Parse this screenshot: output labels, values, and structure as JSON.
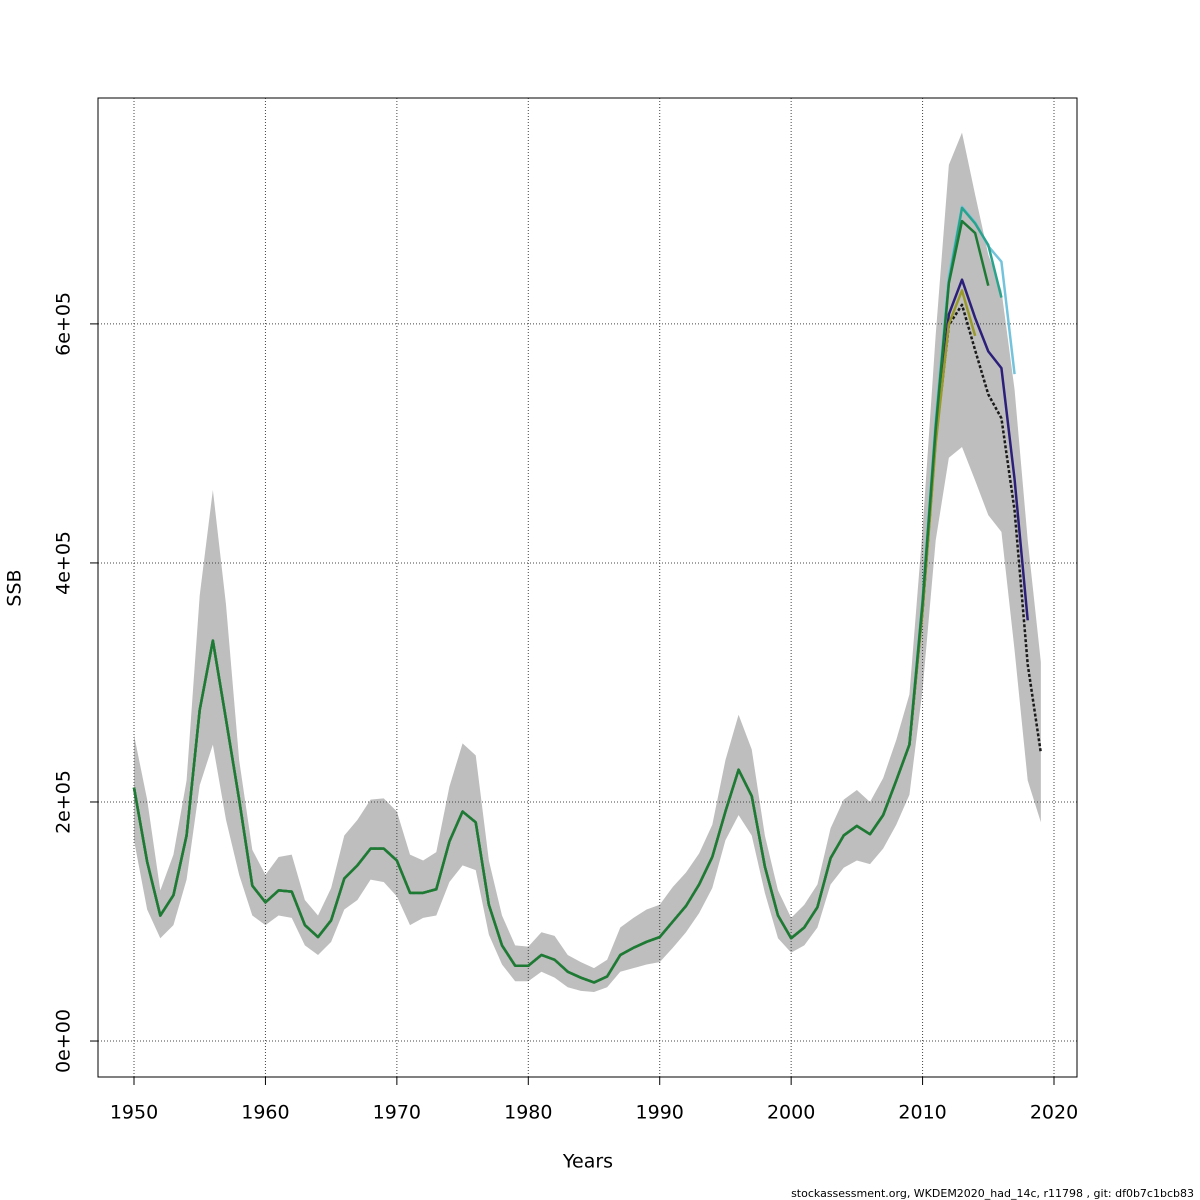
{
  "chart_data": {
    "type": "line",
    "xlabel": "Years",
    "ylabel": "SSB",
    "footer": "stockassessment.org, WKDEM2020_had_14c, r11798 , git: df0b7c1bcb83",
    "xlim": [
      1947.26,
      2021.75
    ],
    "ylim": [
      -30100,
      789000
    ],
    "xticks": [
      1950,
      1960,
      1970,
      1980,
      1990,
      2000,
      2010,
      2020
    ],
    "yticks": [
      {
        "value": 0,
        "label": "0e+00"
      },
      {
        "value": 200000,
        "label": "2e+05"
      },
      {
        "value": 400000,
        "label": "4e+05"
      },
      {
        "value": 600000,
        "label": "6e+05"
      }
    ],
    "grid": true,
    "x": [
      1950,
      1951,
      1952,
      1953,
      1954,
      1955,
      1956,
      1957,
      1958,
      1959,
      1960,
      1961,
      1962,
      1963,
      1964,
      1965,
      1966,
      1967,
      1968,
      1969,
      1970,
      1971,
      1972,
      1973,
      1974,
      1975,
      1976,
      1977,
      1978,
      1979,
      1980,
      1981,
      1982,
      1983,
      1984,
      1985,
      1986,
      1987,
      1988,
      1989,
      1990,
      1991,
      1992,
      1993,
      1994,
      1995,
      1996,
      1997,
      1998,
      1999,
      2000,
      2001,
      2002,
      2003,
      2004,
      2005,
      2006,
      2007,
      2008,
      2009,
      2010,
      2011,
      2012,
      2013,
      2014,
      2015,
      2016,
      2017,
      2018,
      2019
    ],
    "band": {
      "color": "#bebebe",
      "upper": [
        256000,
        202000,
        126000,
        156000,
        218000,
        373000,
        461000,
        365000,
        235000,
        160000,
        139000,
        154000,
        156000,
        118000,
        105000,
        128000,
        172000,
        185000,
        202000,
        203000,
        192000,
        156000,
        151000,
        158000,
        213000,
        249000,
        239000,
        151000,
        105000,
        80000,
        79000,
        91000,
        88000,
        72000,
        66000,
        61000,
        68000,
        95000,
        103000,
        110000,
        114000,
        129000,
        141000,
        157000,
        181000,
        235000,
        273000,
        244000,
        172000,
        126000,
        103000,
        114000,
        131000,
        178000,
        202000,
        210000,
        200000,
        220000,
        252000,
        290000,
        428000,
        591000,
        733000,
        760000,
        708000,
        658000,
        628000,
        545000,
        419000,
        317000
      ],
      "lower": [
        168000,
        110000,
        86000,
        97000,
        135000,
        214000,
        248000,
        185000,
        139000,
        105000,
        97000,
        105000,
        103000,
        80000,
        72000,
        83000,
        110000,
        118000,
        135000,
        133000,
        121000,
        97000,
        103000,
        105000,
        133000,
        147000,
        143000,
        89000,
        64000,
        50000,
        50000,
        58000,
        53000,
        45000,
        42000,
        41000,
        45000,
        58000,
        61000,
        64000,
        66000,
        78000,
        91000,
        107000,
        128000,
        168000,
        189000,
        172000,
        124000,
        86000,
        74000,
        80000,
        95000,
        131000,
        145000,
        151000,
        148000,
        161000,
        181000,
        206000,
        294000,
        419000,
        488000,
        497000,
        469000,
        440000,
        426000,
        327000,
        218000,
        183000
      ]
    },
    "series": [
      {
        "color": "#1a1a1a",
        "dotted": true,
        "values": [
          212000,
          150000,
          105000,
          122000,
          172000,
          277000,
          335000,
          269000,
          202000,
          130000,
          116000,
          126000,
          125000,
          97000,
          87000,
          101000,
          136000,
          147000,
          161000,
          161000,
          151000,
          124000,
          124000,
          127000,
          167000,
          192000,
          183000,
          114000,
          80000,
          63000,
          63000,
          72000,
          68000,
          58000,
          53000,
          49000,
          54000,
          72000,
          78000,
          83000,
          87000,
          100000,
          113000,
          131000,
          154000,
          192000,
          227000,
          205000,
          146000,
          105000,
          86000,
          95000,
          112000,
          153000,
          172000,
          180000,
          173000,
          189000,
          218000,
          248000,
          361000,
          503000,
          599000,
          616000,
          578000,
          541000,
          521000,
          444000,
          315000,
          241000
        ]
      },
      {
        "color": "#2b1f7a",
        "values": [
          212000,
          150000,
          105000,
          122000,
          172000,
          277000,
          335000,
          269000,
          202000,
          130000,
          116000,
          126000,
          125000,
          97000,
          87000,
          101000,
          136000,
          147000,
          161000,
          161000,
          151000,
          124000,
          124000,
          127000,
          167000,
          192000,
          183000,
          114000,
          80000,
          63000,
          63000,
          72000,
          68000,
          58000,
          53000,
          49000,
          54000,
          72000,
          78000,
          83000,
          87000,
          100000,
          113000,
          131000,
          154000,
          192000,
          227000,
          205000,
          146000,
          105000,
          86000,
          95000,
          112000,
          153000,
          172000,
          180000,
          173000,
          189000,
          218000,
          248000,
          361000,
          505000,
          608000,
          637000,
          605000,
          577000,
          563000,
          470000,
          352000,
          null
        ]
      },
      {
        "color": "#74c3dc",
        "values": [
          212000,
          150000,
          105000,
          122000,
          172000,
          277000,
          335000,
          269000,
          202000,
          130000,
          116000,
          126000,
          125000,
          97000,
          87000,
          101000,
          136000,
          147000,
          161000,
          161000,
          151000,
          124000,
          124000,
          127000,
          167000,
          192000,
          183000,
          114000,
          80000,
          63000,
          63000,
          72000,
          68000,
          58000,
          53000,
          49000,
          54000,
          72000,
          78000,
          83000,
          87000,
          100000,
          113000,
          131000,
          154000,
          192000,
          227000,
          205000,
          146000,
          105000,
          86000,
          95000,
          112000,
          153000,
          172000,
          180000,
          173000,
          189000,
          218000,
          248000,
          370000,
          520000,
          640000,
          698000,
          685000,
          665000,
          652000,
          558000,
          null,
          null
        ]
      },
      {
        "color": "#2aa38c",
        "values": [
          212000,
          150000,
          105000,
          122000,
          172000,
          277000,
          335000,
          269000,
          202000,
          130000,
          116000,
          126000,
          125000,
          97000,
          87000,
          101000,
          136000,
          147000,
          161000,
          161000,
          151000,
          124000,
          124000,
          127000,
          167000,
          192000,
          183000,
          114000,
          80000,
          63000,
          63000,
          72000,
          68000,
          58000,
          53000,
          49000,
          54000,
          72000,
          78000,
          83000,
          87000,
          100000,
          113000,
          131000,
          154000,
          192000,
          227000,
          205000,
          146000,
          105000,
          86000,
          95000,
          112000,
          153000,
          172000,
          180000,
          173000,
          189000,
          218000,
          248000,
          368000,
          515000,
          635000,
          697000,
          684000,
          666000,
          622000,
          null,
          null,
          null
        ]
      },
      {
        "color": "#9a9a2c",
        "values": [
          212000,
          150000,
          105000,
          122000,
          172000,
          277000,
          335000,
          269000,
          202000,
          130000,
          116000,
          126000,
          125000,
          97000,
          87000,
          101000,
          136000,
          147000,
          161000,
          161000,
          151000,
          124000,
          124000,
          127000,
          167000,
          192000,
          183000,
          114000,
          80000,
          63000,
          63000,
          72000,
          68000,
          58000,
          53000,
          49000,
          54000,
          72000,
          78000,
          83000,
          87000,
          100000,
          113000,
          131000,
          154000,
          192000,
          227000,
          205000,
          146000,
          105000,
          86000,
          95000,
          112000,
          153000,
          172000,
          180000,
          173000,
          189000,
          218000,
          248000,
          360000,
          500000,
          600000,
          628000,
          590000,
          null,
          null,
          null,
          null,
          null
        ]
      },
      {
        "color": "#1d7a35",
        "values": [
          212000,
          150000,
          105000,
          122000,
          172000,
          277000,
          335000,
          269000,
          202000,
          130000,
          116000,
          126000,
          125000,
          97000,
          87000,
          101000,
          136000,
          147000,
          161000,
          161000,
          151000,
          124000,
          124000,
          127000,
          167000,
          192000,
          183000,
          114000,
          80000,
          63000,
          63000,
          72000,
          68000,
          58000,
          53000,
          49000,
          54000,
          72000,
          78000,
          83000,
          87000,
          100000,
          113000,
          131000,
          154000,
          192000,
          227000,
          205000,
          146000,
          105000,
          86000,
          95000,
          112000,
          153000,
          172000,
          180000,
          173000,
          189000,
          218000,
          248000,
          366000,
          512000,
          634000,
          686000,
          676000,
          632000,
          null,
          null,
          null,
          null
        ]
      }
    ]
  }
}
